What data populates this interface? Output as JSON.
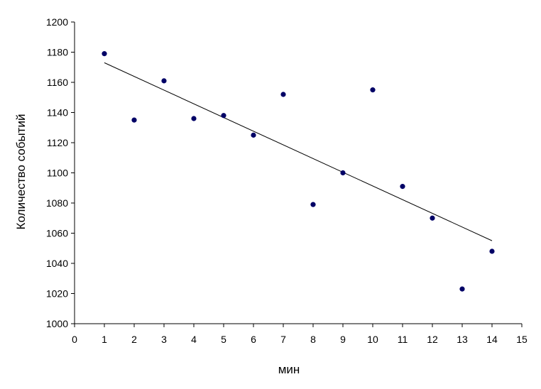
{
  "chart_data": {
    "type": "scatter",
    "title": "",
    "xlabel": "мин",
    "ylabel": "Количество событий",
    "xlim": [
      0,
      15
    ],
    "ylim": [
      1000,
      1200
    ],
    "xticks": [
      0,
      1,
      2,
      3,
      4,
      5,
      6,
      7,
      8,
      9,
      10,
      11,
      12,
      13,
      14,
      15
    ],
    "yticks": [
      1000,
      1020,
      1040,
      1060,
      1080,
      1100,
      1120,
      1140,
      1160,
      1180,
      1200
    ],
    "grid": false,
    "legend": "none",
    "series": [
      {
        "x": [
          1,
          2,
          3,
          4,
          5,
          6,
          7,
          8,
          9,
          10,
          11,
          12,
          13,
          14
        ],
        "y": [
          1179,
          1135,
          1161,
          1136,
          1138,
          1125,
          1152,
          1079,
          1100,
          1155,
          1091,
          1070,
          1023,
          1048
        ],
        "color": "#000066"
      }
    ],
    "trendline": {
      "x": [
        1,
        14
      ],
      "y": [
        1173,
        1055
      ],
      "color": "#000000"
    }
  }
}
